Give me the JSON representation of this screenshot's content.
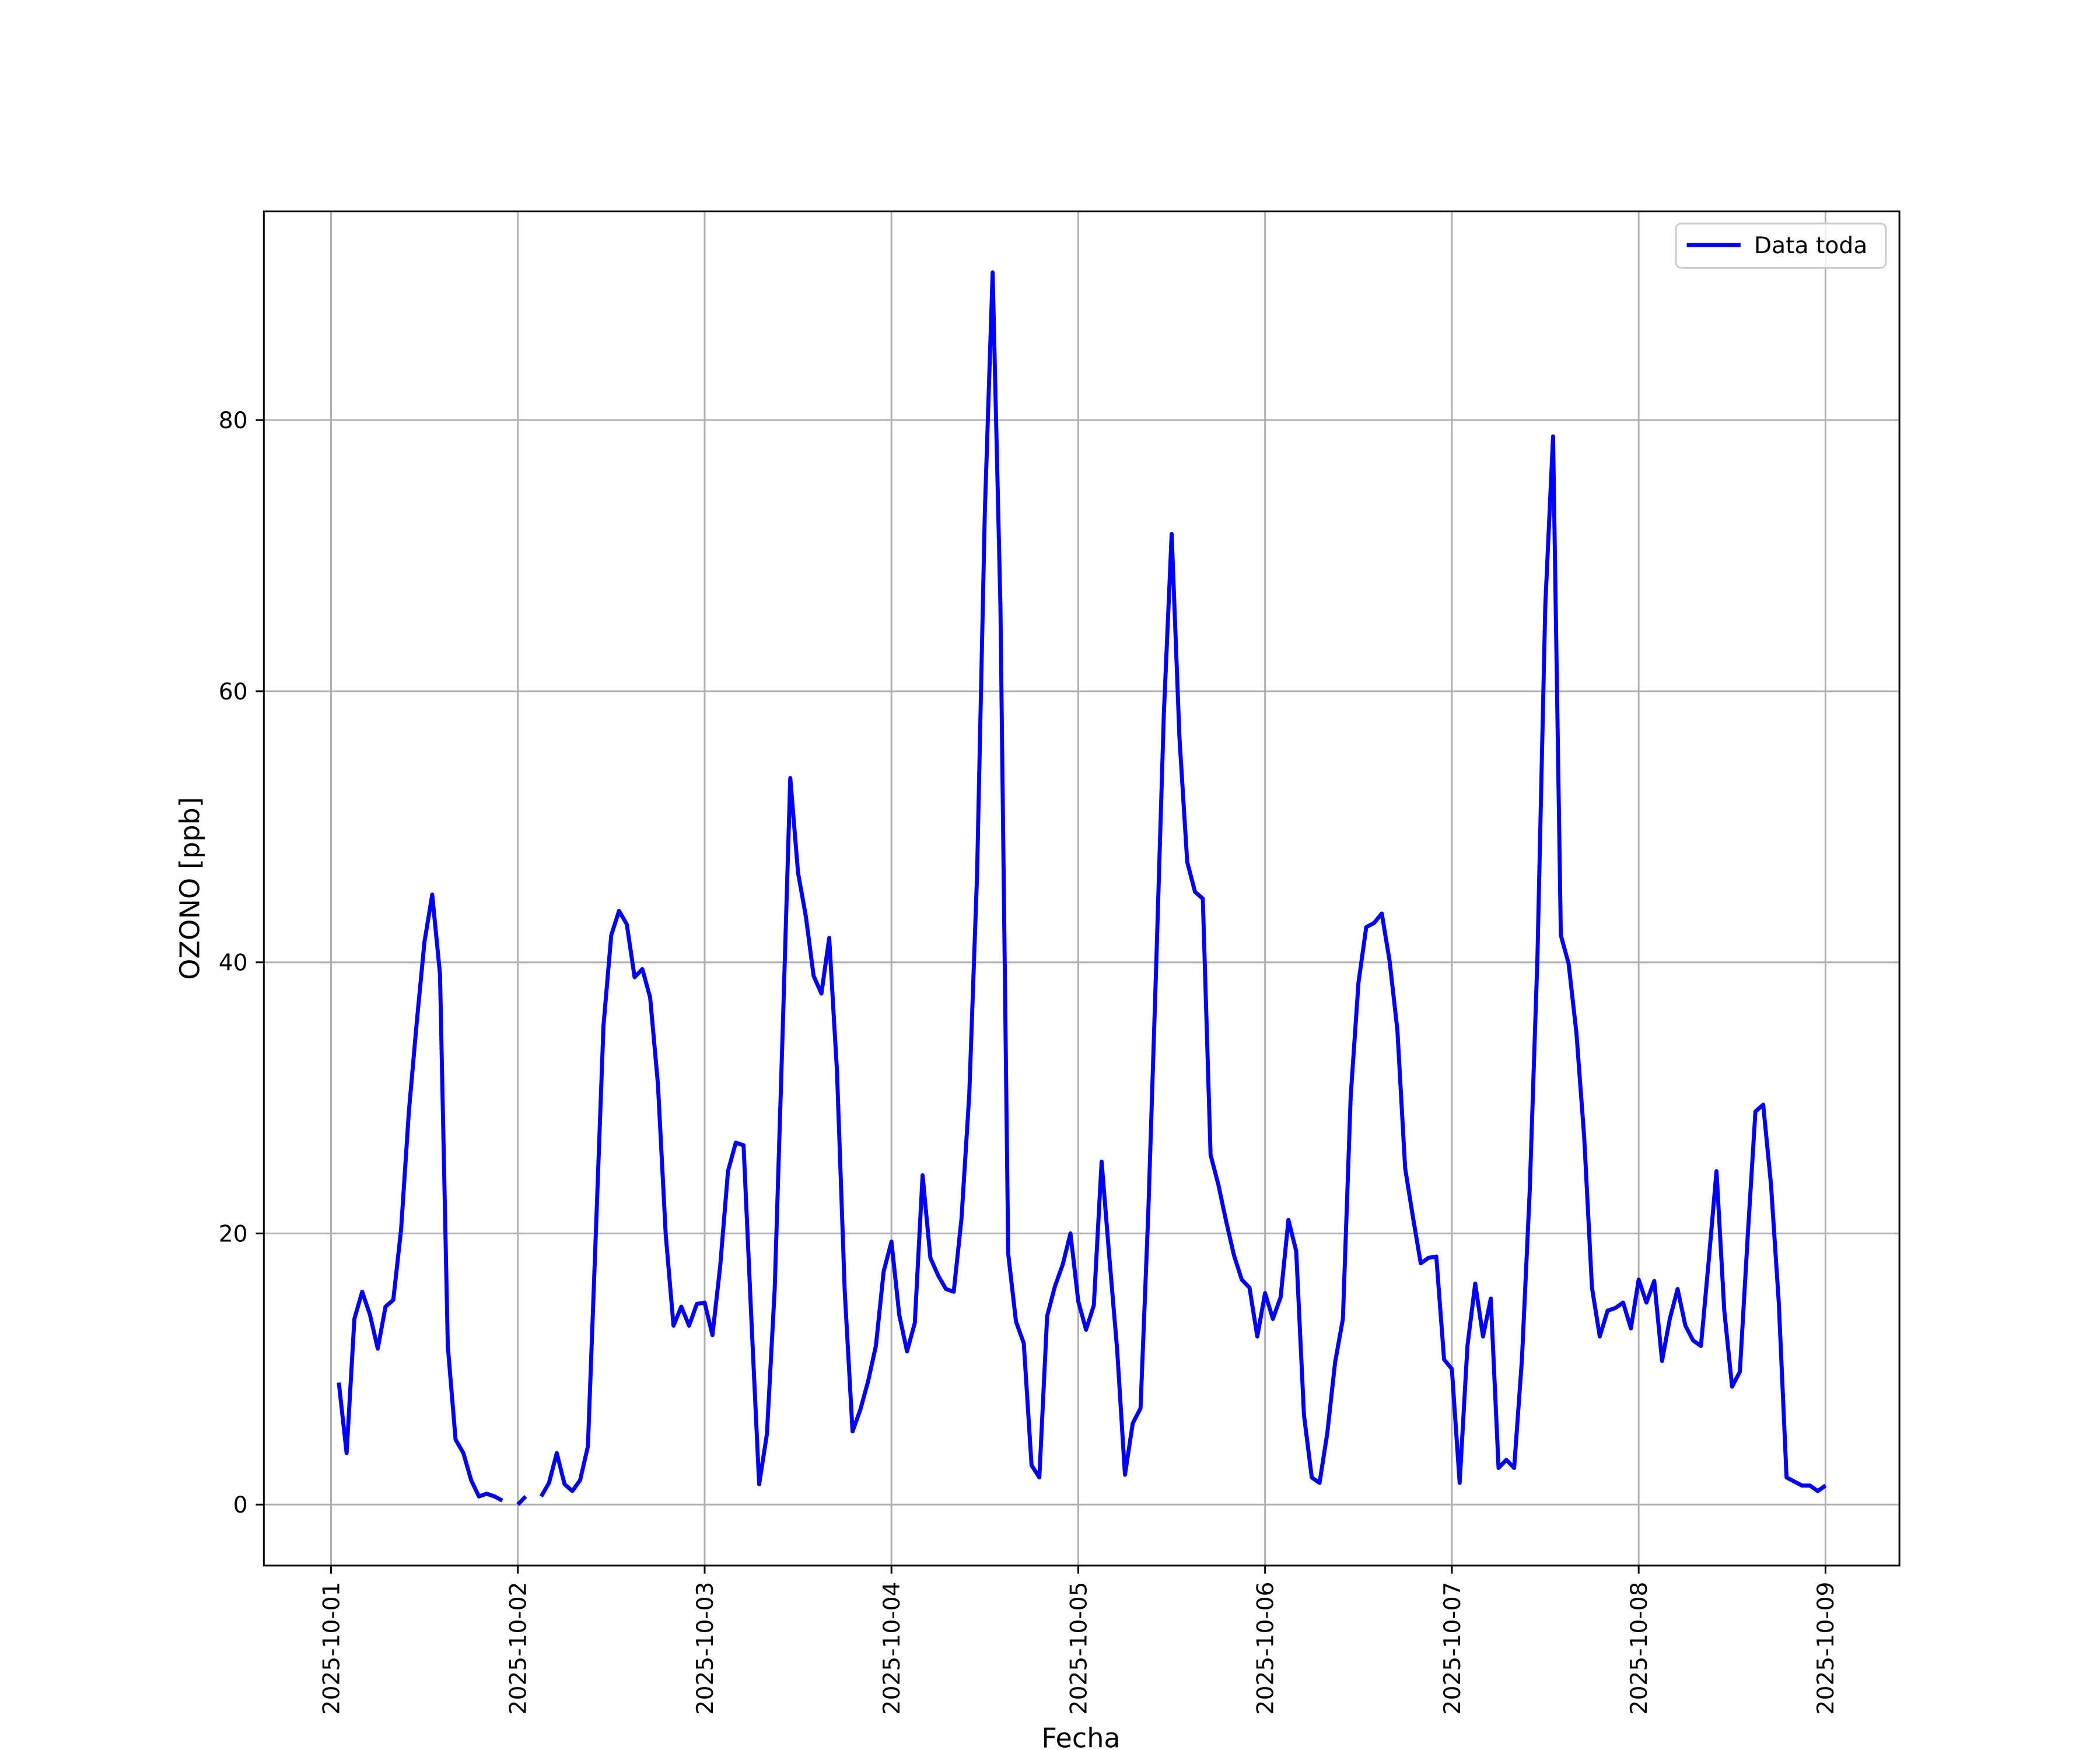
{
  "chart_data": {
    "type": "line",
    "xlabel": "Fecha",
    "ylabel": "OZONO [ppb]",
    "x": [
      "2025-10-01 01:00",
      "2025-10-01 02:00",
      "2025-10-01 03:00",
      "2025-10-01 04:00",
      "2025-10-01 05:00",
      "2025-10-01 06:00",
      "2025-10-01 07:00",
      "2025-10-01 08:00",
      "2025-10-01 09:00",
      "2025-10-01 10:00",
      "2025-10-01 11:00",
      "2025-10-01 12:00",
      "2025-10-01 13:00",
      "2025-10-01 14:00",
      "2025-10-01 15:00",
      "2025-10-01 16:00",
      "2025-10-01 17:00",
      "2025-10-01 18:00",
      "2025-10-01 19:00",
      "2025-10-01 20:00",
      "2025-10-01 21:00",
      "2025-10-01 22:00",
      "2025-10-01 23:00",
      "2025-10-02 00:00",
      "2025-10-02 01:00",
      "2025-10-02 02:00",
      "2025-10-02 03:00",
      "2025-10-02 04:00",
      "2025-10-02 05:00",
      "2025-10-02 06:00",
      "2025-10-02 07:00",
      "2025-10-02 08:00",
      "2025-10-02 09:00",
      "2025-10-02 10:00",
      "2025-10-02 11:00",
      "2025-10-02 12:00",
      "2025-10-02 13:00",
      "2025-10-02 14:00",
      "2025-10-02 15:00",
      "2025-10-02 16:00",
      "2025-10-02 17:00",
      "2025-10-02 18:00",
      "2025-10-02 19:00",
      "2025-10-02 20:00",
      "2025-10-02 21:00",
      "2025-10-02 22:00",
      "2025-10-02 23:00",
      "2025-10-03 00:00",
      "2025-10-03 01:00",
      "2025-10-03 02:00",
      "2025-10-03 03:00",
      "2025-10-03 04:00",
      "2025-10-03 05:00",
      "2025-10-03 06:00",
      "2025-10-03 07:00",
      "2025-10-03 08:00",
      "2025-10-03 09:00",
      "2025-10-03 10:00",
      "2025-10-03 11:00",
      "2025-10-03 12:00",
      "2025-10-03 13:00",
      "2025-10-03 14:00",
      "2025-10-03 15:00",
      "2025-10-03 16:00",
      "2025-10-03 17:00",
      "2025-10-03 18:00",
      "2025-10-03 19:00",
      "2025-10-03 20:00",
      "2025-10-03 21:00",
      "2025-10-03 22:00",
      "2025-10-03 23:00",
      "2025-10-04 00:00",
      "2025-10-04 01:00",
      "2025-10-04 02:00",
      "2025-10-04 03:00",
      "2025-10-04 04:00",
      "2025-10-04 05:00",
      "2025-10-04 06:00",
      "2025-10-04 07:00",
      "2025-10-04 08:00",
      "2025-10-04 09:00",
      "2025-10-04 10:00",
      "2025-10-04 11:00",
      "2025-10-04 12:00",
      "2025-10-04 13:00",
      "2025-10-04 14:00",
      "2025-10-04 15:00",
      "2025-10-04 16:00",
      "2025-10-04 17:00",
      "2025-10-04 18:00",
      "2025-10-04 19:00",
      "2025-10-04 20:00",
      "2025-10-04 21:00",
      "2025-10-04 22:00",
      "2025-10-04 23:00",
      "2025-10-05 00:00",
      "2025-10-05 01:00",
      "2025-10-05 02:00",
      "2025-10-05 03:00",
      "2025-10-05 04:00",
      "2025-10-05 05:00",
      "2025-10-05 06:00",
      "2025-10-05 07:00",
      "2025-10-05 08:00",
      "2025-10-05 09:00",
      "2025-10-05 10:00",
      "2025-10-05 11:00",
      "2025-10-05 12:00",
      "2025-10-05 13:00",
      "2025-10-05 14:00",
      "2025-10-05 15:00",
      "2025-10-05 16:00",
      "2025-10-05 17:00",
      "2025-10-05 18:00",
      "2025-10-05 19:00",
      "2025-10-05 20:00",
      "2025-10-05 21:00",
      "2025-10-05 22:00",
      "2025-10-05 23:00",
      "2025-10-06 00:00",
      "2025-10-06 01:00",
      "2025-10-06 02:00",
      "2025-10-06 03:00",
      "2025-10-06 04:00",
      "2025-10-06 05:00",
      "2025-10-06 06:00",
      "2025-10-06 07:00",
      "2025-10-06 08:00",
      "2025-10-06 09:00",
      "2025-10-06 10:00",
      "2025-10-06 11:00",
      "2025-10-06 12:00",
      "2025-10-06 13:00",
      "2025-10-06 14:00",
      "2025-10-06 15:00",
      "2025-10-06 16:00",
      "2025-10-06 17:00",
      "2025-10-06 18:00",
      "2025-10-06 19:00",
      "2025-10-06 20:00",
      "2025-10-06 21:00",
      "2025-10-06 22:00",
      "2025-10-06 23:00",
      "2025-10-07 00:00",
      "2025-10-07 01:00",
      "2025-10-07 02:00",
      "2025-10-07 03:00",
      "2025-10-07 04:00",
      "2025-10-07 05:00",
      "2025-10-07 06:00",
      "2025-10-07 07:00",
      "2025-10-07 08:00",
      "2025-10-07 09:00",
      "2025-10-07 10:00",
      "2025-10-07 11:00",
      "2025-10-07 12:00",
      "2025-10-07 13:00",
      "2025-10-07 14:00",
      "2025-10-07 15:00",
      "2025-10-07 16:00",
      "2025-10-07 17:00",
      "2025-10-07 18:00",
      "2025-10-07 19:00",
      "2025-10-07 20:00",
      "2025-10-07 21:00",
      "2025-10-07 22:00",
      "2025-10-07 23:00",
      "2025-10-08 00:00",
      "2025-10-08 01:00",
      "2025-10-08 02:00",
      "2025-10-08 03:00",
      "2025-10-08 04:00",
      "2025-10-08 05:00",
      "2025-10-08 06:00",
      "2025-10-08 07:00",
      "2025-10-08 08:00",
      "2025-10-08 09:00",
      "2025-10-08 10:00",
      "2025-10-08 11:00",
      "2025-10-08 12:00",
      "2025-10-08 13:00",
      "2025-10-08 14:00",
      "2025-10-08 15:00",
      "2025-10-08 16:00",
      "2025-10-08 17:00",
      "2025-10-08 18:00",
      "2025-10-08 19:00",
      "2025-10-08 20:00",
      "2025-10-08 21:00",
      "2025-10-08 22:00",
      "2025-10-08 23:00",
      "2025-10-09 00:00"
    ],
    "series": [
      {
        "name": "Data toda",
        "color": "#0000ff",
        "values": [
          9.0,
          3.8,
          13.7,
          15.7,
          14.0,
          11.5,
          14.6,
          15.1,
          20.3,
          29.0,
          35.5,
          41.5,
          45.0,
          39.1,
          11.7,
          4.8,
          3.8,
          1.8,
          0.6,
          0.8,
          0.6,
          0.3,
          null,
          0.0,
          0.6,
          null,
          0.6,
          1.6,
          3.8,
          1.5,
          1.0,
          1.8,
          4.3,
          19.7,
          35.3,
          42.0,
          43.8,
          42.8,
          38.9,
          39.5,
          37.4,
          31.0,
          19.9,
          13.2,
          14.6,
          13.2,
          14.8,
          14.9,
          12.5,
          17.6,
          24.6,
          26.7,
          26.5,
          13.7,
          1.5,
          5.2,
          15.9,
          34.5,
          53.6,
          46.6,
          43.4,
          39.0,
          37.7,
          41.8,
          32.0,
          15.7,
          5.4,
          7.0,
          9.1,
          11.7,
          17.2,
          19.4,
          14.0,
          11.3,
          13.4,
          24.3,
          18.2,
          16.9,
          15.9,
          15.7,
          21.1,
          30.3,
          46.5,
          73.3,
          90.9,
          66.3,
          18.5,
          13.5,
          11.9,
          2.9,
          2.0,
          13.9,
          16.1,
          17.7,
          20.0,
          15.0,
          12.9,
          14.7,
          25.3,
          18.2,
          11.4,
          2.2,
          6.0,
          7.1,
          21.6,
          39.5,
          58.4,
          71.6,
          56.6,
          47.4,
          45.2,
          44.7,
          25.8,
          23.6,
          20.9,
          18.4,
          16.6,
          16.0,
          12.4,
          15.6,
          13.7,
          15.3,
          21.0,
          18.7,
          6.6,
          2.0,
          1.6,
          5.3,
          10.5,
          13.7,
          30.1,
          38.5,
          42.6,
          42.9,
          43.6,
          40.1,
          35.0,
          24.8,
          21.2,
          17.8,
          18.2,
          18.3,
          10.7,
          10.0,
          1.6,
          11.7,
          16.3,
          12.4,
          15.2,
          2.7,
          3.3,
          2.7,
          10.7,
          23.1,
          40.5,
          66.3,
          78.8,
          42.0,
          39.9,
          34.8,
          27.1,
          16.0,
          12.4,
          14.3,
          14.5,
          14.9,
          13.0,
          16.6,
          14.9,
          16.5,
          10.6,
          13.7,
          15.9,
          13.2,
          12.1,
          11.7,
          18.0,
          24.6,
          14.3,
          8.7,
          9.8,
          19.7,
          29.0,
          29.5,
          23.6,
          14.9,
          2.0,
          1.7,
          1.4,
          1.4,
          1.0,
          1.4
        ]
      }
    ],
    "xlim": [
      "2025-09-30 15:22",
      "2025-10-09 09:30"
    ],
    "xticks": [
      "2025-10-01",
      "2025-10-02",
      "2025-10-03",
      "2025-10-04",
      "2025-10-05",
      "2025-10-06",
      "2025-10-07",
      "2025-10-08",
      "2025-10-09"
    ],
    "ylim": [
      -4.5,
      95.4
    ],
    "yticks": [
      0,
      20,
      40,
      60,
      80
    ],
    "grid": true,
    "legend": "upper right"
  }
}
